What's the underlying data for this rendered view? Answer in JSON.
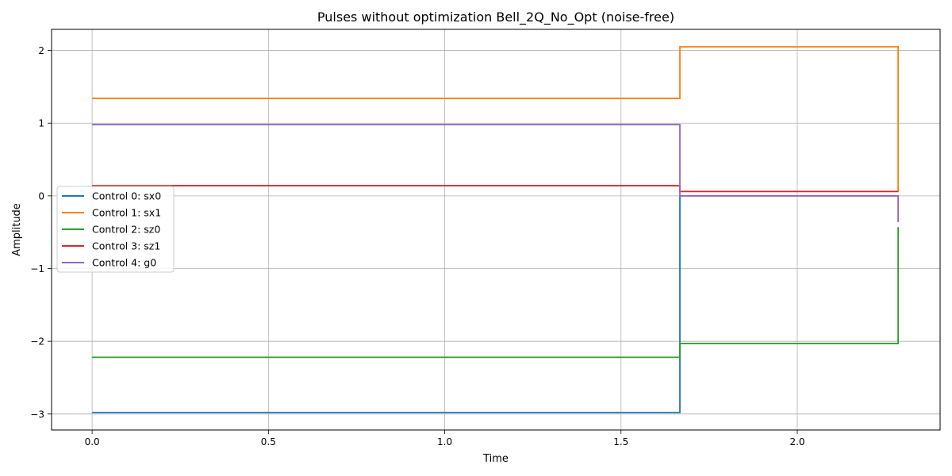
{
  "chart_data": {
    "type": "line",
    "step": "post",
    "title": "Pulses without optimization Bell_2Q_No_Opt (noise-free)",
    "xlabel": "Time",
    "ylabel": "Amplitude",
    "xlim": [
      -0.115,
      2.405
    ],
    "ylim": [
      -3.22,
      2.29
    ],
    "xticks": [
      0.0,
      0.5,
      1.0,
      1.5,
      2.0
    ],
    "xtick_labels": [
      "0.0",
      "0.5",
      "1.0",
      "1.5",
      "2.0"
    ],
    "yticks": [
      -3,
      -2,
      -1,
      0,
      1,
      2
    ],
    "ytick_labels": [
      "−3",
      "−2",
      "−1",
      "0",
      "1",
      "2"
    ],
    "grid": true,
    "legend_position": "center-left",
    "x": [
      0.0,
      1.667,
      2.286
    ],
    "series": [
      {
        "name": "Control 0: sx0",
        "color": "#1f77b4",
        "values": [
          -2.98,
          0.0,
          0.0
        ]
      },
      {
        "name": "Control 1: sx1",
        "color": "#ff7f0e",
        "values": [
          1.34,
          2.05,
          0.05
        ]
      },
      {
        "name": "Control 2: sz0",
        "color": "#2ca02c",
        "values": [
          -2.22,
          -2.03,
          -0.43
        ]
      },
      {
        "name": "Control 3: sz1",
        "color": "#d62728",
        "values": [
          0.14,
          0.06,
          0.06
        ]
      },
      {
        "name": "Control 4: g0",
        "color": "#9467bd",
        "values": [
          0.98,
          0.0,
          -0.36
        ]
      }
    ]
  }
}
